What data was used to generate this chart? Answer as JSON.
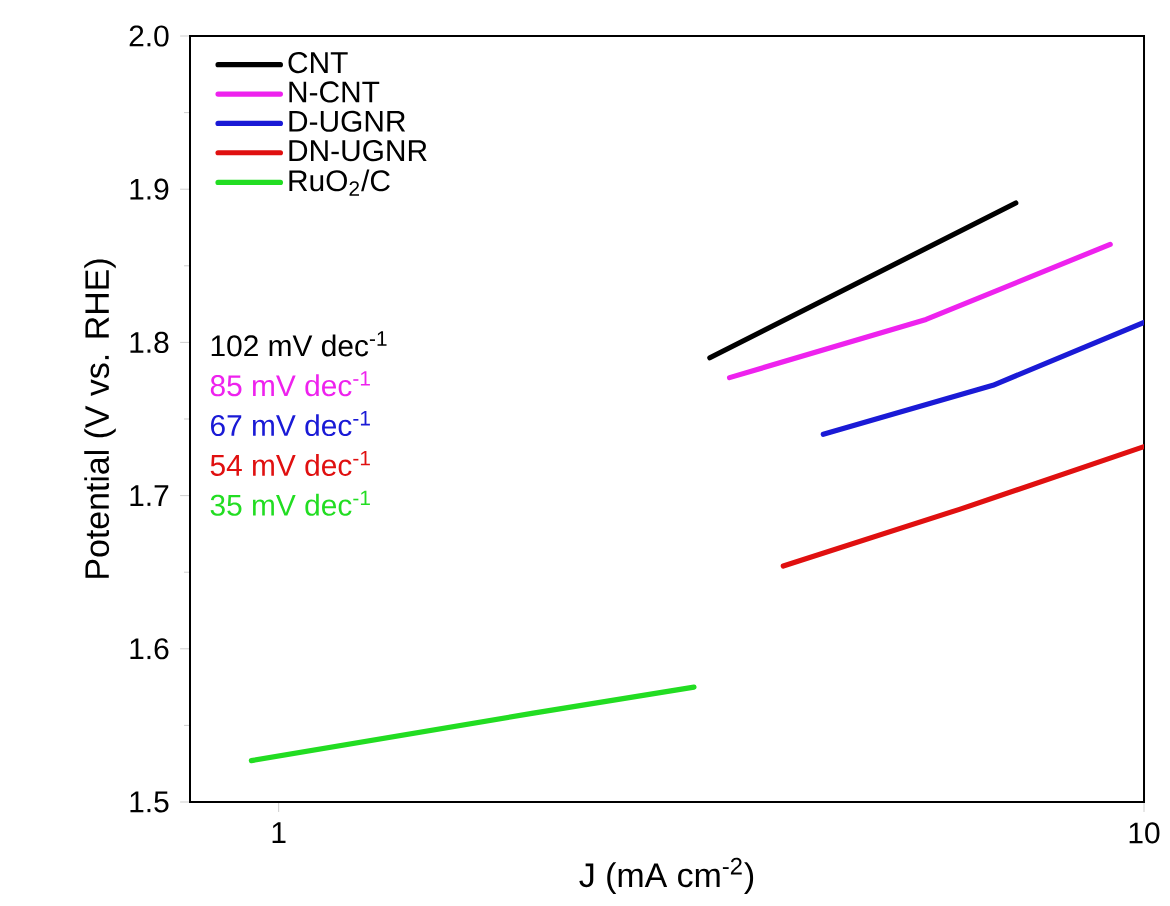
{
  "chart_data": {
    "type": "line",
    "xlabel": "J (mA cm$^{-2}$)",
    "ylabel": "Potential (V vs. RHE)",
    "log": "x",
    "xlim": [
      0.79,
      10
    ],
    "xticks": [
      1,
      10
    ],
    "ylim": [
      1.5,
      2.0
    ],
    "yticks": [
      1.5,
      1.6,
      1.7,
      1.8,
      1.9,
      {
        "value": 2.0,
        "label": "2.0"
      }
    ],
    "legend": "top left",
    "grid": false,
    "marker": "none",
    "line_style": "solid",
    "series": [
      {
        "name": "CNT",
        "color": "#000000",
        "x": [
          3.15,
          7.11
        ],
        "values": [
          1.79,
          1.891
        ]
      },
      {
        "name": "N-CNT",
        "color": "#ee22ee",
        "x": [
          3.32,
          5.6,
          9.14
        ],
        "values": [
          1.777,
          1.815,
          1.864
        ]
      },
      {
        "name": "D-UGNR",
        "color": "#1a1ad6",
        "x": [
          4.26,
          6.69,
          10
        ],
        "values": [
          1.74,
          1.772,
          1.813
        ]
      },
      {
        "name": "DN-UGNR",
        "color": "#e01010",
        "x": [
          3.83,
          6.12,
          10
        ],
        "values": [
          1.654,
          1.691,
          1.732
        ]
      },
      {
        "name": "RuO$_{2}$/C",
        "color": "#22dd22",
        "x": [
          0.93,
          1.97,
          3.02
        ],
        "values": [
          1.527,
          1.558,
          1.575
        ]
      }
    ],
    "annotations": [
      "102 mV dec$^{-1}$",
      "85 mV dec$^{-1}$",
      "67 mV dec$^{-1}$",
      "54 mV dec$^{-1}$",
      "35 mV dec$^{-1}$"
    ]
  }
}
